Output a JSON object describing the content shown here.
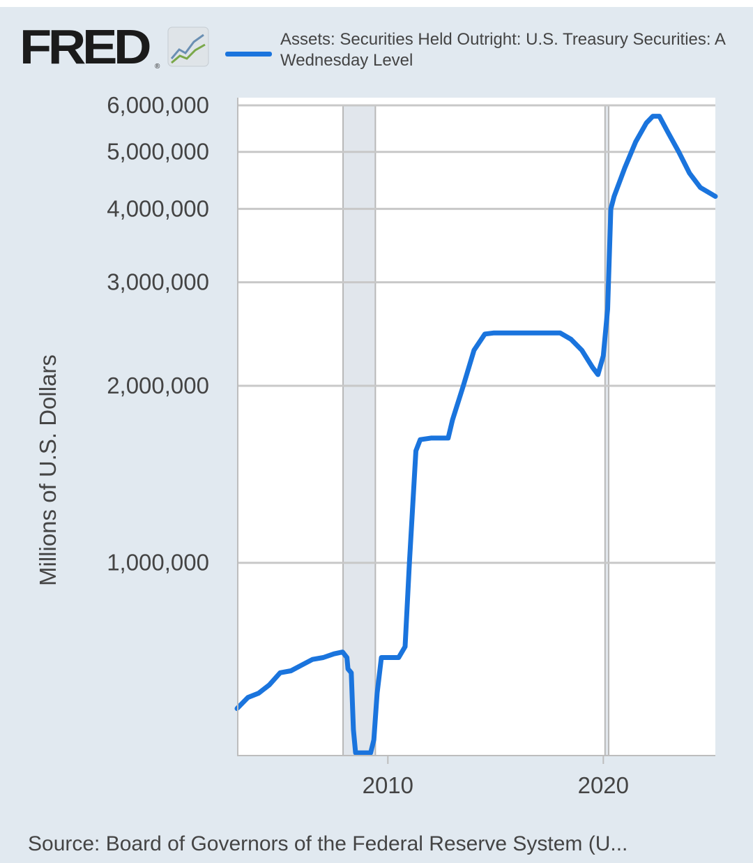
{
  "header": {
    "logo_text": "FRED",
    "logo_mark": "®",
    "logo_icon": "chart-line-icon",
    "legend_line1": "Assets: Securities Held Outright: U.S. Treasury Securities: A",
    "legend_line2": "Wednesday Level"
  },
  "colors": {
    "series": "#1a74dd",
    "background": "#e1e9f0",
    "plot_background": "#ffffff",
    "grid": "#c8c8c8",
    "recession": "#e1e6ec"
  },
  "chart_data": {
    "type": "line",
    "title": "",
    "xlabel": "",
    "ylabel": "Millions of U.S. Dollars",
    "y_scale": "log",
    "xlim": [
      2003.0,
      2025.2
    ],
    "ylim": [
      470000,
      6000000
    ],
    "y_ticks": [
      {
        "value": 1000000,
        "label": "1,000,000"
      },
      {
        "value": 2000000,
        "label": "2,000,000"
      },
      {
        "value": 3000000,
        "label": "3,000,000"
      },
      {
        "value": 4000000,
        "label": "4,000,000"
      },
      {
        "value": 5000000,
        "label": "5,000,000"
      },
      {
        "value": 6000000,
        "label": "6,000,000"
      }
    ],
    "x_ticks": [
      {
        "value": 2010,
        "label": "2010"
      },
      {
        "value": 2020,
        "label": "2020"
      }
    ],
    "recessions": [
      [
        2007.92,
        2009.42
      ],
      [
        2020.08,
        2020.25
      ]
    ],
    "grid": true,
    "legend_position": "top",
    "series": [
      {
        "name": "Assets: Securities Held Outright: U.S. Treasury Securities: A Wednesday Level",
        "x": [
          2003.0,
          2003.5,
          2004.0,
          2004.5,
          2005.0,
          2005.5,
          2006.0,
          2006.5,
          2007.0,
          2007.5,
          2007.9,
          2008.1,
          2008.15,
          2008.3,
          2008.4,
          2008.5,
          2009.0,
          2009.2,
          2009.35,
          2009.5,
          2009.7,
          2009.9,
          2010.5,
          2010.8,
          2011.0,
          2011.3,
          2011.5,
          2012.0,
          2012.5,
          2012.8,
          2013.0,
          2013.5,
          2014.0,
          2014.5,
          2014.9,
          2015.5,
          2016.5,
          2017.5,
          2018.0,
          2018.5,
          2019.0,
          2019.5,
          2019.75,
          2020.0,
          2020.2,
          2020.35,
          2020.5,
          2021.0,
          2021.5,
          2022.0,
          2022.3,
          2022.6,
          2023.0,
          2023.5,
          2024.0,
          2024.5,
          2025.2
        ],
        "values": [
          565000,
          590000,
          600000,
          620000,
          650000,
          655000,
          670000,
          685000,
          690000,
          700000,
          705000,
          690000,
          660000,
          650000,
          520000,
          475000,
          475000,
          475000,
          500000,
          600000,
          690000,
          690000,
          690000,
          720000,
          1000000,
          1550000,
          1620000,
          1630000,
          1630000,
          1630000,
          1750000,
          2000000,
          2300000,
          2450000,
          2460000,
          2460000,
          2460000,
          2460000,
          2460000,
          2400000,
          2300000,
          2150000,
          2090000,
          2250000,
          2700000,
          4000000,
          4200000,
          4700000,
          5200000,
          5600000,
          5750000,
          5750000,
          5400000,
          5000000,
          4600000,
          4350000,
          4200000
        ]
      }
    ]
  },
  "source": "Source: Board of Governors of the Federal Reserve System (U..."
}
